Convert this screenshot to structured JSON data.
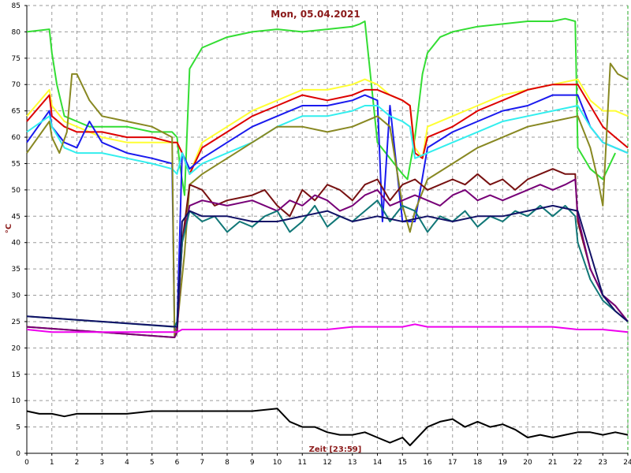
{
  "chart_data": {
    "type": "line",
    "title": "Mon, 05.04.2021",
    "xlabel": "Zeit [23:59]",
    "ylabel": "°C",
    "xlim": [
      0,
      24
    ],
    "ylim": [
      0,
      85
    ],
    "x_ticks": [
      0,
      1,
      2,
      3,
      4,
      5,
      6,
      7,
      8,
      9,
      10,
      11,
      12,
      13,
      14,
      15,
      16,
      17,
      18,
      19,
      20,
      21,
      22,
      23,
      24
    ],
    "y_ticks": [
      0,
      5,
      10,
      15,
      20,
      25,
      30,
      35,
      40,
      45,
      50,
      55,
      60,
      65,
      70,
      75,
      80,
      85
    ],
    "grid": true,
    "series": [
      {
        "color": "#33dd33",
        "x": [
          0,
          0.9,
          1,
          1.2,
          1.5,
          2,
          2.5,
          3,
          4,
          5,
          5.8,
          6,
          6.1,
          6.3,
          6.5,
          7,
          8,
          9,
          10,
          11,
          12,
          13,
          13.3,
          13.5,
          14,
          15,
          15.2,
          15.5,
          15.8,
          16,
          16.5,
          17,
          18,
          19,
          20,
          21,
          21.5,
          21.9,
          22,
          22.5,
          23,
          23.5
        ],
        "y": [
          80,
          80.5,
          76,
          70,
          64,
          63,
          62,
          62,
          62,
          61,
          61,
          60,
          55,
          49,
          73,
          77,
          79,
          80,
          80.5,
          80,
          80.5,
          81,
          81.5,
          82,
          59,
          53,
          52,
          60,
          72,
          76,
          79,
          80,
          81,
          81.5,
          82,
          82,
          82.5,
          82,
          58,
          54,
          52,
          57
        ]
      },
      {
        "color": "#ffff33",
        "x": [
          0,
          0.9,
          1,
          1.5,
          2,
          2.5,
          3,
          4,
          5,
          5.8,
          6,
          6.2,
          6.5,
          7,
          8,
          9,
          10,
          11,
          12,
          13,
          13.5,
          14,
          14.5,
          15,
          15.3,
          15.5,
          15.8,
          16,
          17,
          18,
          19,
          20,
          21,
          22,
          22.5,
          23,
          23.5,
          24
        ],
        "y": [
          64,
          69,
          66,
          63,
          62,
          61,
          60,
          59,
          59,
          59,
          59,
          57,
          53,
          59,
          62,
          65,
          67,
          69,
          69,
          70,
          71,
          70,
          68,
          67,
          66,
          58,
          56,
          62,
          64,
          66,
          68,
          69,
          70,
          71,
          67,
          65,
          65,
          64
        ]
      },
      {
        "color": "#dd0000",
        "x": [
          0,
          0.9,
          1,
          1.5,
          2,
          3,
          4,
          5,
          5.8,
          6,
          6.2,
          6.5,
          7,
          8,
          9,
          10,
          11,
          12,
          13,
          13.5,
          14,
          14.5,
          15,
          15.3,
          15.5,
          15.8,
          16,
          17,
          18,
          19,
          20,
          21,
          22,
          22.5,
          23,
          23.5,
          24
        ],
        "y": [
          63,
          68,
          64,
          62,
          61,
          61,
          60,
          60,
          59,
          59,
          57,
          53,
          58,
          61,
          64,
          66,
          68,
          67,
          68,
          69,
          69,
          68,
          67,
          66,
          57,
          56,
          60,
          62,
          65,
          67,
          69,
          70,
          70,
          66,
          62,
          60,
          58
        ]
      },
      {
        "color": "#1a1aee",
        "x": [
          0,
          0.9,
          1,
          1.5,
          2,
          2.5,
          3,
          4,
          5,
          5.8,
          5.9,
          6,
          6.2,
          6.5,
          7,
          8,
          9,
          10,
          11,
          12,
          13,
          13.5,
          14,
          14.2,
          14.5,
          15,
          15.3,
          15.5,
          16,
          17,
          18,
          19,
          20,
          21,
          22,
          22.5,
          23,
          23.5,
          24
        ],
        "y": [
          59,
          65,
          62,
          59,
          58,
          63,
          59,
          57,
          56,
          55,
          23,
          24,
          57,
          54,
          56,
          59,
          62,
          64,
          66,
          66,
          67,
          68,
          67,
          44,
          66,
          44,
          44,
          44,
          58,
          61,
          63,
          65,
          66,
          68,
          68,
          62,
          59,
          58,
          57
        ]
      },
      {
        "color": "#33eeee",
        "x": [
          0,
          0.9,
          1,
          1.5,
          2,
          3,
          4,
          5,
          5.8,
          6,
          6.2,
          6.5,
          7,
          8,
          9,
          10,
          11,
          12,
          13,
          13.5,
          14,
          14.5,
          15,
          15.3,
          15.5,
          16,
          17,
          18,
          19,
          20,
          21,
          22,
          22.5,
          23,
          23.5,
          24
        ],
        "y": [
          61,
          64,
          62,
          58,
          57,
          57,
          56,
          55,
          54,
          53,
          57,
          53,
          55,
          57,
          59,
          62,
          64,
          64,
          65,
          66,
          66,
          64,
          63,
          62,
          56,
          57,
          59,
          61,
          63,
          64,
          65,
          66,
          62,
          59,
          58,
          57
        ]
      },
      {
        "color": "#888822",
        "x": [
          0,
          0.9,
          1,
          1.3,
          1.6,
          1.8,
          2,
          2.5,
          3,
          4,
          5,
          5.8,
          5.9,
          6,
          6.3,
          6.5,
          7,
          8,
          9,
          10,
          11,
          12,
          13,
          14,
          14.5,
          15,
          15.3,
          15.5,
          16,
          17,
          18,
          19,
          20,
          21,
          22,
          22.5,
          22.8,
          23,
          23.3,
          23.6,
          24
        ],
        "y": [
          57,
          63,
          60,
          57,
          61,
          72,
          72,
          67,
          64,
          63,
          62,
          60,
          22,
          24,
          38,
          51,
          53,
          56,
          59,
          62,
          62,
          61,
          62,
          64,
          62,
          47,
          42,
          46,
          52,
          55,
          58,
          60,
          62,
          63,
          64,
          58,
          52,
          47,
          74,
          72,
          71
        ]
      },
      {
        "color": "#771111",
        "x": [
          0,
          5.9,
          6,
          6.2,
          6.5,
          7,
          7.5,
          8,
          9,
          9.5,
          10,
          10.5,
          11,
          11.5,
          12,
          12.5,
          13,
          13.5,
          14,
          14.5,
          15,
          15.5,
          16,
          16.5,
          17,
          17.5,
          18,
          18.5,
          19,
          19.5,
          20,
          20.5,
          21,
          21.5,
          21.9,
          22,
          22.5,
          23,
          23.5,
          24
        ],
        "y": [
          24,
          22,
          23,
          40,
          51,
          50,
          47,
          48,
          49,
          50,
          47,
          45,
          50,
          48,
          51,
          50,
          48,
          51,
          52,
          48,
          51,
          52,
          50,
          51,
          52,
          51,
          53,
          51,
          52,
          50,
          52,
          53,
          54,
          53,
          53,
          44,
          35,
          30,
          28,
          25
        ]
      },
      {
        "color": "#770077",
        "x": [
          0,
          5.9,
          6,
          6.2,
          6.5,
          7,
          8,
          9,
          10,
          10.5,
          11,
          11.5,
          12,
          12.5,
          13,
          13.5,
          14,
          14.5,
          15,
          15.5,
          16,
          16.5,
          17,
          17.5,
          18,
          18.5,
          19,
          19.5,
          20,
          20.5,
          21,
          21.5,
          21.9,
          22,
          22.5,
          23,
          23.5,
          24
        ],
        "y": [
          24,
          22,
          23,
          40,
          47,
          48,
          47,
          48,
          46,
          48,
          47,
          49,
          48,
          46,
          47,
          49,
          50,
          47,
          48,
          49,
          48,
          47,
          49,
          50,
          48,
          49,
          48,
          49,
          50,
          51,
          50,
          51,
          52,
          45,
          35,
          30,
          28,
          25
        ]
      },
      {
        "color": "#117777",
        "x": [
          0,
          5.9,
          6,
          6.2,
          6.5,
          7,
          7.5,
          8,
          8.5,
          9,
          9.5,
          10,
          10.5,
          11,
          11.5,
          12,
          12.5,
          13,
          13.5,
          14,
          14.5,
          15,
          15.5,
          16,
          16.5,
          17,
          17.5,
          18,
          18.5,
          19,
          19.5,
          20,
          20.5,
          21,
          21.5,
          21.9,
          22,
          22.5,
          23,
          23.5,
          24
        ],
        "y": [
          26,
          24,
          25,
          40,
          46,
          44,
          45,
          42,
          44,
          43,
          45,
          46,
          42,
          44,
          47,
          43,
          45,
          44,
          46,
          48,
          44,
          47,
          46,
          42,
          45,
          44,
          46,
          43,
          45,
          44,
          46,
          45,
          47,
          45,
          47,
          45,
          40,
          33,
          29,
          27,
          25
        ]
      },
      {
        "color": "#111166",
        "x": [
          0,
          6,
          6.2,
          6.5,
          7,
          8,
          9,
          10,
          11,
          12,
          13,
          14,
          15,
          16,
          17,
          18,
          19,
          20,
          21,
          22,
          22.5,
          23,
          23.5,
          24
        ],
        "y": [
          26,
          24,
          44,
          46,
          45,
          45,
          44,
          44,
          45,
          46,
          44,
          45,
          44,
          45,
          44,
          45,
          45,
          46,
          47,
          46,
          38,
          30,
          27,
          25
        ]
      },
      {
        "color": "#ee00ee",
        "x": [
          0,
          1,
          2,
          3,
          4,
          5,
          6,
          6.2,
          7,
          8,
          9,
          10,
          11,
          12,
          13,
          14,
          15,
          15.5,
          16,
          17,
          18,
          19,
          20,
          21,
          22,
          23,
          24
        ],
        "y": [
          23.5,
          23,
          23,
          23,
          23,
          23,
          23,
          23.5,
          23.5,
          23.5,
          23.5,
          23.5,
          23.5,
          23.5,
          24,
          24,
          24,
          24.5,
          24,
          24,
          24,
          24,
          24,
          24,
          23.5,
          23.5,
          23
        ]
      },
      {
        "color": "#000000",
        "x": [
          0,
          0.5,
          1,
          1.5,
          2,
          3,
          4,
          5,
          6,
          7,
          8,
          9,
          10,
          10.5,
          11,
          11.5,
          12,
          12.5,
          13,
          13.5,
          14,
          14.5,
          15,
          15.3,
          15.6,
          16,
          16.5,
          17,
          17.5,
          18,
          18.5,
          19,
          19.5,
          20,
          20.5,
          21,
          21.5,
          22,
          22.5,
          23,
          23.5,
          24
        ],
        "y": [
          8,
          7.5,
          7.5,
          7,
          7.5,
          7.5,
          7.5,
          8,
          8,
          8,
          8,
          8,
          8.5,
          6,
          5,
          5,
          4,
          3.5,
          3.5,
          4,
          3,
          2,
          3,
          1.5,
          3,
          5,
          6,
          6.5,
          5,
          6,
          5,
          5.5,
          4.5,
          3,
          3.5,
          3,
          3.5,
          4,
          4,
          3.5,
          4,
          3.5
        ]
      }
    ]
  }
}
